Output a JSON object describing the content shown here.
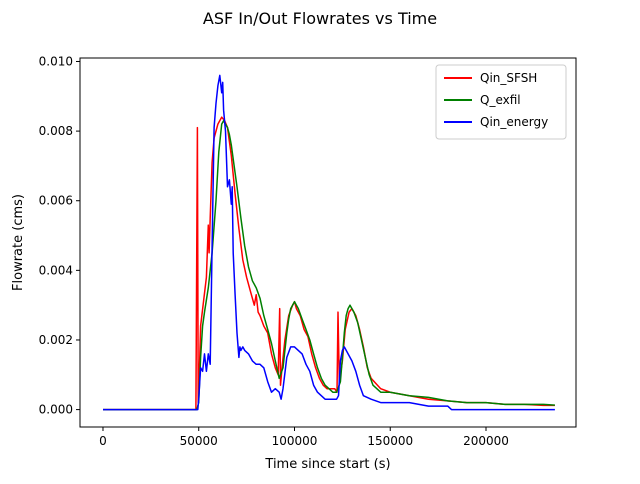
{
  "chart_data": {
    "type": "line",
    "title": "ASF In/Out Flowrates vs Time",
    "xlabel": "Time since start (s)",
    "ylabel": "Flowrate (cms)",
    "xlim": [
      -12000,
      247000
    ],
    "ylim": [
      -0.0005,
      0.0101
    ],
    "xticks": [
      0,
      50000,
      100000,
      150000,
      200000
    ],
    "xtick_labels": [
      "0",
      "50000",
      "100000",
      "150000",
      "200000"
    ],
    "yticks": [
      0.0,
      0.002,
      0.004,
      0.006,
      0.008,
      0.01
    ],
    "ytick_labels": [
      "0.000",
      "0.002",
      "0.004",
      "0.006",
      "0.008",
      "0.010"
    ],
    "grid": false,
    "legend_position": "top-right",
    "series": [
      {
        "name": "Qin_SFSH",
        "color": "#ff0000",
        "x": [
          0,
          10000,
          20000,
          30000,
          40000,
          48500,
          49300,
          49700,
          50400,
          51000,
          52500,
          54000,
          55000,
          55400,
          56000,
          57000,
          58000,
          60000,
          62000,
          63500,
          65000,
          67000,
          69000,
          71000,
          73000,
          75000,
          77000,
          79000,
          80000,
          81000,
          82000,
          84000,
          86000,
          88000,
          90000,
          91500,
          92300,
          92700,
          93500,
          95000,
          97000,
          99000,
          100000,
          101000,
          103000,
          105000,
          107000,
          109000,
          111000,
          113000,
          115000,
          117000,
          119000,
          121000,
          122200,
          122700,
          123400,
          125000,
          126500,
          128500,
          130000,
          132000,
          134000,
          136000,
          138000,
          140000,
          145000,
          150000,
          160000,
          170000,
          180000,
          190000,
          200000,
          210000,
          220000,
          230000,
          236000
        ],
        "y": [
          0.0,
          0.0,
          0.0,
          0.0,
          0.0,
          0.0,
          0.0081,
          0.0002,
          0.0012,
          0.0024,
          0.0031,
          0.0038,
          0.0053,
          0.0045,
          0.0055,
          0.0071,
          0.0078,
          0.0082,
          0.0084,
          0.0083,
          0.0081,
          0.0073,
          0.0062,
          0.0052,
          0.0043,
          0.0038,
          0.0034,
          0.003,
          0.0033,
          0.0028,
          0.0027,
          0.0024,
          0.0022,
          0.0016,
          0.0012,
          0.001,
          0.0029,
          0.0007,
          0.0012,
          0.002,
          0.0027,
          0.003,
          0.0031,
          0.0029,
          0.0027,
          0.0023,
          0.0021,
          0.0016,
          0.0012,
          0.0009,
          0.0007,
          0.0006,
          0.0006,
          0.0006,
          0.0005,
          0.0028,
          0.0008,
          0.0014,
          0.0023,
          0.0028,
          0.0029,
          0.0027,
          0.0023,
          0.0018,
          0.0012,
          0.0009,
          0.0006,
          0.0005,
          0.0004,
          0.0003,
          0.00025,
          0.0002,
          0.0002,
          0.00015,
          0.00015,
          0.00012,
          0.00012
        ]
      },
      {
        "name": "Q_exfil",
        "color": "#008000",
        "x": [
          0,
          10000,
          20000,
          30000,
          40000,
          49000,
          50000,
          51000,
          52000,
          53000,
          55000,
          57000,
          59000,
          60500,
          62000,
          63000,
          64000,
          65000,
          66000,
          67000,
          68000,
          70000,
          72000,
          74000,
          76000,
          78000,
          80000,
          82000,
          84000,
          86000,
          88000,
          90000,
          92000,
          94000,
          96000,
          97000,
          98000,
          99000,
          100000,
          101000,
          102000,
          104000,
          106000,
          108000,
          110000,
          112000,
          114000,
          116000,
          118000,
          120000,
          122000,
          124000,
          125000,
          126000,
          127000,
          128000,
          129000,
          130000,
          131000,
          133000,
          135000,
          137000,
          139000,
          141000,
          145000,
          150000,
          160000,
          170000,
          180000,
          190000,
          200000,
          210000,
          220000,
          230000,
          236000
        ],
        "y": [
          0.0,
          0.0,
          0.0,
          0.0,
          0.0,
          0.0,
          0.0002,
          0.0015,
          0.0024,
          0.0028,
          0.0035,
          0.0045,
          0.006,
          0.0074,
          0.0082,
          0.0083,
          0.0082,
          0.0081,
          0.0079,
          0.0076,
          0.0072,
          0.0064,
          0.0055,
          0.0047,
          0.0041,
          0.0037,
          0.0035,
          0.0032,
          0.0027,
          0.0023,
          0.0019,
          0.0014,
          0.0009,
          0.0012,
          0.0022,
          0.0026,
          0.0029,
          0.003,
          0.0031,
          0.003,
          0.0029,
          0.0026,
          0.0023,
          0.002,
          0.0016,
          0.0012,
          0.0009,
          0.0007,
          0.0006,
          0.0005,
          0.0005,
          0.0008,
          0.0015,
          0.0022,
          0.0027,
          0.0029,
          0.003,
          0.0029,
          0.0028,
          0.0025,
          0.002,
          0.0015,
          0.001,
          0.0007,
          0.0005,
          0.0005,
          0.0004,
          0.00035,
          0.00025,
          0.0002,
          0.0002,
          0.00015,
          0.00015,
          0.00015,
          0.00013
        ]
      },
      {
        "name": "Qin_energy",
        "color": "#0000ff",
        "x": [
          0,
          5000,
          10000,
          15000,
          20000,
          25000,
          30000,
          35000,
          40000,
          45000,
          49500,
          50000,
          51000,
          52000,
          53000,
          54000,
          55000,
          56000,
          57000,
          58000,
          59000,
          60000,
          61000,
          62000,
          62500,
          63000,
          64000,
          65000,
          66000,
          67000,
          67500,
          68000,
          69000,
          70000,
          71000,
          71500,
          72000,
          73000,
          74000,
          76000,
          78000,
          80000,
          82000,
          84000,
          86000,
          88000,
          90000,
          92000,
          93000,
          94000,
          96000,
          98000,
          100000,
          102000,
          104000,
          106000,
          108000,
          110000,
          112000,
          114000,
          116000,
          118000,
          120000,
          122000,
          123000,
          124000,
          125000,
          126000,
          128000,
          130000,
          132000,
          134000,
          136000,
          140000,
          145000,
          150000,
          155000,
          160000,
          170000,
          180000,
          182000,
          190000,
          200000,
          210000,
          220000,
          230000,
          236000
        ],
        "y": [
          0.0,
          0.0,
          0.0,
          0.0,
          0.0,
          0.0,
          0.0,
          0.0,
          0.0,
          0.0,
          0.0,
          0.0003,
          0.0012,
          0.0011,
          0.0016,
          0.0011,
          0.0016,
          0.0013,
          0.0047,
          0.0081,
          0.0088,
          0.0093,
          0.0096,
          0.0091,
          0.0094,
          0.0086,
          0.008,
          0.0064,
          0.0066,
          0.0059,
          0.0064,
          0.0045,
          0.0033,
          0.0022,
          0.0015,
          0.0018,
          0.0017,
          0.0018,
          0.0017,
          0.0016,
          0.0014,
          0.0013,
          0.0013,
          0.0012,
          0.0008,
          0.0005,
          0.0006,
          0.0005,
          0.0003,
          0.0006,
          0.0015,
          0.0018,
          0.0018,
          0.0017,
          0.0016,
          0.0013,
          0.0011,
          0.0007,
          0.0005,
          0.0004,
          0.0003,
          0.0003,
          0.0003,
          0.0003,
          0.0004,
          0.0014,
          0.0017,
          0.0018,
          0.0016,
          0.0014,
          0.0011,
          0.0007,
          0.0004,
          0.0003,
          0.0002,
          0.0002,
          0.0002,
          0.0002,
          0.0001,
          0.0001,
          0.0,
          0.0,
          0.0,
          0.0,
          0.0,
          0.0,
          0.0
        ]
      }
    ]
  }
}
